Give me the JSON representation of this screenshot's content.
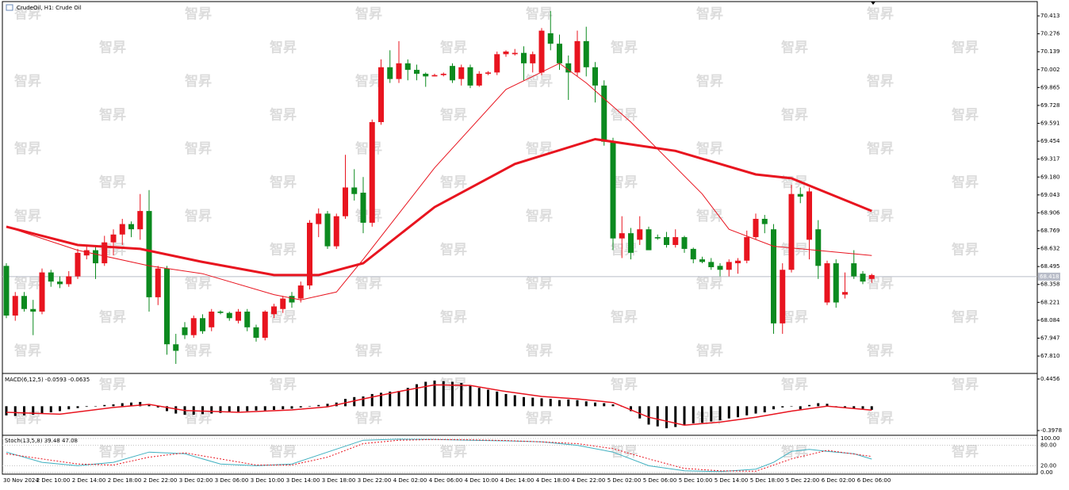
{
  "chart_data": {
    "type": "candlestick",
    "title": "CrudeOil, H1:  Crude Oil",
    "watermark": "智昇",
    "bull_color": "#e8141f",
    "bear_color": "#0c8a1f",
    "ylim": [
      67.683,
      70.486
    ],
    "yticks": [
      70.413,
      70.276,
      70.139,
      70.002,
      69.865,
      69.728,
      69.591,
      69.454,
      69.317,
      {
        "value": 69.18,
        "label": "69.180"
      },
      69.043,
      68.906,
      68.769,
      68.632,
      68.495,
      68.358,
      68.221,
      68.084,
      67.947,
      {
        "value": 67.81,
        "label": "67.810"
      }
    ],
    "current_price": 68.418,
    "candles": [
      [
        68.5,
        68.52,
        68.1,
        68.12
      ],
      [
        68.12,
        68.3,
        68.08,
        68.27
      ],
      [
        68.27,
        68.3,
        68.15,
        68.17
      ],
      [
        68.17,
        68.24,
        67.97,
        68.15
      ],
      [
        68.15,
        68.48,
        68.13,
        68.45
      ],
      [
        68.45,
        68.47,
        68.34,
        68.38
      ],
      [
        68.38,
        68.42,
        68.33,
        68.36
      ],
      [
        68.36,
        68.46,
        68.34,
        68.42
      ],
      [
        68.42,
        68.63,
        68.4,
        68.6
      ],
      [
        68.58,
        68.66,
        68.55,
        68.62
      ],
      [
        68.62,
        68.66,
        68.4,
        68.52
      ],
      [
        68.52,
        68.73,
        68.5,
        68.68
      ],
      [
        68.68,
        68.78,
        68.58,
        68.74
      ],
      [
        68.74,
        68.86,
        68.66,
        68.82
      ],
      [
        68.82,
        68.84,
        68.72,
        68.78
      ],
      [
        68.78,
        69.05,
        68.7,
        68.92
      ],
      [
        68.92,
        69.08,
        68.15,
        68.26
      ],
      [
        68.26,
        68.5,
        68.2,
        68.48
      ],
      [
        68.48,
        68.5,
        67.82,
        67.9
      ],
      [
        67.9,
        67.98,
        67.75,
        67.85
      ],
      [
        68.03,
        68.07,
        67.94,
        67.97
      ],
      [
        67.97,
        68.12,
        67.95,
        68.1
      ],
      [
        68.1,
        68.13,
        67.98,
        68.0
      ],
      [
        68.03,
        68.17,
        68.0,
        68.15
      ],
      [
        68.15,
        68.16,
        68.13,
        68.14
      ],
      [
        68.14,
        68.15,
        68.08,
        68.1
      ],
      [
        68.08,
        68.17,
        68.06,
        68.15
      ],
      [
        68.15,
        68.17,
        68.0,
        68.03
      ],
      [
        68.03,
        68.05,
        67.92,
        67.95
      ],
      [
        67.95,
        68.16,
        67.93,
        68.15
      ],
      [
        68.13,
        68.21,
        68.1,
        68.19
      ],
      [
        68.17,
        68.27,
        68.14,
        68.25
      ],
      [
        68.27,
        68.3,
        68.18,
        68.22
      ],
      [
        68.25,
        68.38,
        68.22,
        68.35
      ],
      [
        68.35,
        68.85,
        68.32,
        68.83
      ],
      [
        68.82,
        68.94,
        68.72,
        68.9
      ],
      [
        68.9,
        68.92,
        68.63,
        68.65
      ],
      [
        68.65,
        68.9,
        68.63,
        68.88
      ],
      [
        68.88,
        69.35,
        68.86,
        69.1
      ],
      [
        69.1,
        69.24,
        69.0,
        69.05
      ],
      [
        69.06,
        69.18,
        68.75,
        68.83
      ],
      [
        68.83,
        69.62,
        68.8,
        69.6
      ],
      [
        69.6,
        70.08,
        69.58,
        70.02
      ],
      [
        70.02,
        70.15,
        69.9,
        69.93
      ],
      [
        69.93,
        70.22,
        69.9,
        70.05
      ],
      [
        70.05,
        70.08,
        69.92,
        70.0
      ],
      [
        70.0,
        70.04,
        69.92,
        69.97
      ],
      [
        69.97,
        69.98,
        69.87,
        69.95
      ],
      [
        69.95,
        69.97,
        69.95,
        69.96
      ],
      [
        69.96,
        69.98,
        69.95,
        69.97
      ],
      [
        70.03,
        70.05,
        69.9,
        69.92
      ],
      [
        69.93,
        70.04,
        69.88,
        70.02
      ],
      [
        70.02,
        70.04,
        69.86,
        69.88
      ],
      [
        69.88,
        69.99,
        69.87,
        69.97
      ],
      [
        69.97,
        69.99,
        69.96,
        69.98
      ],
      [
        69.98,
        70.14,
        69.96,
        70.12
      ],
      [
        70.12,
        70.15,
        70.1,
        70.14
      ],
      [
        70.12,
        70.16,
        70.11,
        70.13
      ],
      [
        70.13,
        70.18,
        69.92,
        70.05
      ],
      [
        70.05,
        70.14,
        69.98,
        70.12
      ],
      [
        69.98,
        70.32,
        69.96,
        70.3
      ],
      [
        70.28,
        70.45,
        70.15,
        70.2
      ],
      [
        70.2,
        70.27,
        70.0,
        70.05
      ],
      [
        70.05,
        70.11,
        69.77,
        69.98
      ],
      [
        69.98,
        70.3,
        69.95,
        70.22
      ],
      [
        70.22,
        70.33,
        69.95,
        70.02
      ],
      [
        70.02,
        70.06,
        69.75,
        69.88
      ],
      [
        69.88,
        69.92,
        69.42,
        69.45
      ],
      [
        69.45,
        69.48,
        68.62,
        68.71
      ],
      [
        68.71,
        68.88,
        68.56,
        68.75
      ],
      [
        68.75,
        68.79,
        68.55,
        68.6
      ],
      [
        68.7,
        68.88,
        68.66,
        68.78
      ],
      [
        68.78,
        68.8,
        68.62,
        68.62
      ],
      [
        68.72,
        68.74,
        68.7,
        68.71
      ],
      [
        68.72,
        68.76,
        68.64,
        68.66
      ],
      [
        68.66,
        68.78,
        68.64,
        68.72
      ],
      [
        68.72,
        68.73,
        68.6,
        68.63
      ],
      [
        68.63,
        68.64,
        68.52,
        68.55
      ],
      [
        68.55,
        68.57,
        68.52,
        68.53
      ],
      [
        68.53,
        68.56,
        68.47,
        68.49
      ],
      [
        68.5,
        68.52,
        68.42,
        68.47
      ],
      [
        68.47,
        68.55,
        68.42,
        68.53
      ],
      [
        68.52,
        68.56,
        68.44,
        68.54
      ],
      [
        68.54,
        68.77,
        68.52,
        68.72
      ],
      [
        68.72,
        68.9,
        68.7,
        68.86
      ],
      [
        68.86,
        68.89,
        68.75,
        68.82
      ],
      [
        68.78,
        68.82,
        67.98,
        68.06
      ],
      [
        68.06,
        68.52,
        67.98,
        68.47
      ],
      [
        68.47,
        69.12,
        68.45,
        69.05
      ],
      [
        69.05,
        69.1,
        68.98,
        69.03
      ],
      [
        68.7,
        69.1,
        68.55,
        69.07
      ],
      [
        68.78,
        68.85,
        68.4,
        68.5
      ],
      [
        68.22,
        68.54,
        68.2,
        68.52
      ],
      [
        68.52,
        68.55,
        68.18,
        68.22
      ],
      [
        68.28,
        68.45,
        68.25,
        68.3
      ],
      [
        68.52,
        68.62,
        68.4,
        68.42
      ],
      [
        68.44,
        68.46,
        68.36,
        68.38
      ],
      [
        68.4,
        68.44,
        68.37,
        68.43
      ]
    ],
    "series": [
      {
        "color": "#e8141f",
        "width": 1,
        "x": [
          0,
          8,
          16,
          22,
          30,
          33,
          37,
          40,
          48,
          56,
          62,
          65,
          70,
          78,
          81,
          86,
          97
        ],
        "values": [
          68.8,
          68.62,
          68.5,
          68.44,
          68.28,
          68.24,
          68.3,
          68.55,
          69.25,
          69.85,
          70.05,
          69.9,
          69.6,
          69.05,
          68.78,
          68.65,
          68.58
        ]
      },
      {
        "color": "#e8141f",
        "width": 3,
        "x": [
          0,
          8,
          15,
          22,
          30,
          35,
          40,
          48,
          57,
          66,
          75,
          84,
          88,
          97
        ],
        "values": [
          68.8,
          68.66,
          68.63,
          68.53,
          68.43,
          68.43,
          68.52,
          68.95,
          69.28,
          69.47,
          69.38,
          69.2,
          69.17,
          68.92
        ]
      }
    ],
    "x_labels": [
      "30 Nov 2024",
      "2 Dec 10:00",
      "2 Dec 14:00",
      "2 Dec 18:00",
      "2 Dec 22:00",
      "3 Dec 02:00",
      "3 Dec 06:00",
      "3 Dec 10:00",
      "3 Dec 14:00",
      "3 Dec 18:00",
      "3 Dec 22:00",
      "4 Dec 02:00",
      "4 Dec 06:00",
      "4 Dec 10:00",
      "4 Dec 14:00",
      "4 Dec 18:00",
      "4 Dec 22:00",
      "5 Dec 02:00",
      "5 Dec 06:00",
      "5 Dec 10:00",
      "5 Dec 14:00",
      "5 Dec 18:00",
      "5 Dec 22:00",
      "6 Dec 02:00",
      "6 Dec 06:00"
    ],
    "macd": {
      "label": "MACD(6,12,5) -0.0593 -0.0635",
      "ylim": [
        -0.4627,
        0.5235
      ],
      "yticks": [
        0.4456,
        -0.3978
      ],
      "histogram_color": "#000000",
      "histogram": [
        -0.15,
        -0.16,
        -0.15,
        -0.14,
        -0.12,
        -0.1,
        -0.08,
        -0.05,
        -0.03,
        -0.01,
        0.0,
        0.02,
        0.03,
        0.05,
        0.06,
        0.07,
        0.03,
        -0.02,
        -0.08,
        -0.12,
        -0.14,
        -0.14,
        -0.13,
        -0.12,
        -0.11,
        -0.1,
        -0.09,
        -0.08,
        -0.07,
        -0.07,
        -0.06,
        -0.05,
        -0.04,
        -0.02,
        0.0,
        0.02,
        0.04,
        0.06,
        0.12,
        0.15,
        0.16,
        0.2,
        0.22,
        0.24,
        0.25,
        0.3,
        0.36,
        0.4,
        0.42,
        0.41,
        0.4,
        0.38,
        0.34,
        0.3,
        0.27,
        0.24,
        0.2,
        0.18,
        0.15,
        0.14,
        0.13,
        0.12,
        0.1,
        0.11,
        0.1,
        0.08,
        0.06,
        0.05,
        0.03,
        0.0,
        -0.08,
        -0.2,
        -0.3,
        -0.33,
        -0.36,
        -0.34,
        -0.3,
        -0.28,
        -0.27,
        -0.25,
        -0.23,
        -0.2,
        -0.18,
        -0.15,
        -0.12,
        -0.1,
        -0.05,
        -0.02,
        0.0,
        -0.05,
        0.02,
        0.05,
        0.04,
        0.0,
        -0.02,
        -0.04,
        -0.04,
        -0.0593
      ],
      "signal": {
        "color": "#e8141f",
        "x": [
          0,
          6,
          12,
          16,
          20,
          26,
          32,
          36,
          40,
          44,
          48,
          52,
          56,
          60,
          64,
          68,
          72,
          76,
          80,
          84,
          88,
          92,
          97
        ],
        "values": [
          -0.1,
          -0.13,
          -0.02,
          0.03,
          -0.07,
          -0.1,
          -0.06,
          -0.01,
          0.12,
          0.24,
          0.35,
          0.34,
          0.24,
          0.16,
          0.12,
          0.06,
          -0.18,
          -0.31,
          -0.26,
          -0.18,
          -0.08,
          0.0,
          -0.0635
        ]
      }
    },
    "stoch": {
      "label": "Stoch(13,5,8) 39.48 47.08",
      "ylim": [
        -4.7,
        107
      ],
      "yticks": [
        {
          "value": 100,
          "label": "100.00"
        },
        {
          "value": 80,
          "label": "80.00"
        },
        {
          "value": 20,
          "label": "20.00"
        },
        {
          "value": 0,
          "label": "0.00"
        }
      ],
      "main": {
        "color": "#3fb0c0",
        "x": [
          0,
          4,
          8,
          12,
          16,
          20,
          24,
          28,
          32,
          36,
          40,
          44,
          48,
          52,
          56,
          60,
          64,
          68,
          72,
          76,
          80,
          84,
          86,
          88,
          90,
          92,
          95,
          97
        ],
        "values": [
          60,
          30,
          20,
          30,
          60,
          55,
          25,
          20,
          25,
          60,
          95,
          98,
          97,
          95,
          93,
          90,
          80,
          60,
          20,
          5,
          3,
          10,
          30,
          62,
          68,
          62,
          55,
          39.48
        ]
      },
      "signal": {
        "color": "#e8141f",
        "x": [
          0,
          4,
          8,
          12,
          16,
          20,
          24,
          28,
          32,
          36,
          40,
          44,
          48,
          52,
          56,
          60,
          64,
          68,
          72,
          76,
          80,
          84,
          88,
          92,
          97
        ],
        "values": [
          55,
          40,
          25,
          22,
          45,
          58,
          40,
          22,
          22,
          45,
          85,
          95,
          97,
          96,
          94,
          90,
          85,
          70,
          40,
          12,
          5,
          4,
          40,
          65,
          47.08
        ]
      }
    }
  }
}
